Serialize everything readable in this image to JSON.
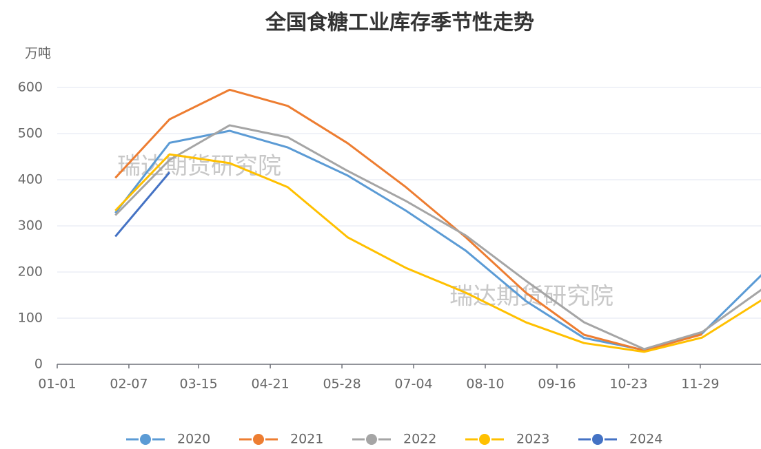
{
  "chart_data": {
    "type": "line",
    "title": "全国食糖工业库存季节性走势",
    "y_label": "万吨",
    "watermark": "瑞达期货研究院",
    "x": [
      "01-31",
      "02-28",
      "03-31",
      "04-30",
      "05-31",
      "06-30",
      "07-31",
      "08-31",
      "09-30",
      "10-31",
      "11-30",
      "12-31"
    ],
    "xlim": [
      "01-01",
      "12-31"
    ],
    "xticks": [
      "01-01",
      "02-07",
      "03-15",
      "04-21",
      "05-28",
      "07-04",
      "08-10",
      "09-16",
      "10-23",
      "11-29"
    ],
    "ylim": [
      0,
      600
    ],
    "yticks": [
      0,
      100,
      200,
      300,
      400,
      500,
      600
    ],
    "grid": true,
    "legend": "bottom",
    "series": [
      {
        "name": "2020",
        "color": "#5b9bd5",
        "values": [
          328,
          480,
          506,
          470,
          409,
          333,
          246,
          137,
          57,
          31,
          67,
          195
        ]
      },
      {
        "name": "2021",
        "color": "#ed7d31",
        "values": [
          404,
          531,
          595,
          560,
          479,
          384,
          275,
          155,
          64,
          30,
          65,
          null
        ]
      },
      {
        "name": "2022",
        "color": "#a5a5a5",
        "values": [
          323,
          443,
          518,
          492,
          419,
          354,
          279,
          181,
          91,
          33,
          70,
          163
        ]
      },
      {
        "name": "2023",
        "color": "#ffc000",
        "values": [
          333,
          455,
          436,
          384,
          275,
          209,
          155,
          91,
          46,
          27,
          58,
          140
        ]
      },
      {
        "name": "2024",
        "color": "#4472c4",
        "values": [
          277,
          416,
          null,
          null,
          null,
          null,
          null,
          null,
          null,
          null,
          null,
          null
        ]
      }
    ]
  }
}
